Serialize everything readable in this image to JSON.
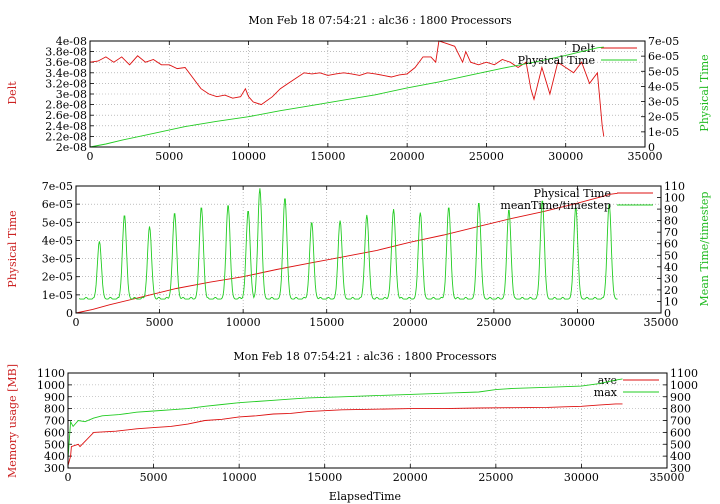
{
  "page": {
    "title": "Mon Feb 18 07:54:21 : alc36 : 1800 Processors"
  },
  "colors": {
    "red": "#dd1111",
    "green": "#22cc22",
    "grid": "#999999",
    "axis": "#000000"
  },
  "chart_data": [
    {
      "type": "line",
      "title": "Mon Feb 18 07:54:21 : alc36 : 1800 Processors",
      "xlabel": "",
      "ylabel": "Delt",
      "y2label": "Physical Time",
      "xlim": [
        0,
        35000
      ],
      "ylim": [
        2e-08,
        4e-08
      ],
      "y2lim": [
        0,
        7e-05
      ],
      "xticks": [
        "0",
        "5000",
        "10000",
        "15000",
        "20000",
        "25000",
        "30000",
        "35000"
      ],
      "yticks": [
        "2e-08",
        "2.2e-08",
        "2.4e-08",
        "2.6e-08",
        "2.8e-08",
        "3e-08",
        "3.2e-08",
        "3.4e-08",
        "3.6e-08",
        "3.8e-08",
        "4e-08"
      ],
      "y2ticks": [
        "0",
        "1e-05",
        "2e-05",
        "3e-05",
        "4e-05",
        "5e-05",
        "6e-05",
        "7e-05"
      ],
      "grid": true,
      "legend": "top-right",
      "series": [
        {
          "name": "Delt",
          "axis": "y",
          "color": "#dd1111",
          "x": [
            0,
            500,
            1000,
            1500,
            2000,
            2500,
            3000,
            3500,
            4000,
            4500,
            5000,
            5500,
            6000,
            6500,
            7000,
            7500,
            8000,
            8500,
            9000,
            9500,
            9800,
            10000,
            10300,
            10800,
            11500,
            12000,
            12500,
            13000,
            13500,
            14000,
            14500,
            15000,
            15500,
            16000,
            16500,
            17000,
            17500,
            18000,
            18500,
            19000,
            19500,
            20000,
            20500,
            21000,
            21500,
            21800,
            22000,
            22500,
            23000,
            23500,
            23700,
            24000,
            24500,
            25000,
            25500,
            26000,
            26500,
            27000,
            27500,
            27800,
            28000,
            28500,
            29000,
            29500,
            30000,
            30500,
            31000,
            31500,
            32000,
            32300,
            32400
          ],
          "values": [
            3.6e-08,
            3.62e-08,
            3.7e-08,
            3.6e-08,
            3.7e-08,
            3.55e-08,
            3.72e-08,
            3.6e-08,
            3.65e-08,
            3.55e-08,
            3.55e-08,
            3.48e-08,
            3.5e-08,
            3.3e-08,
            3.1e-08,
            3e-08,
            2.95e-08,
            2.98e-08,
            2.92e-08,
            2.95e-08,
            3.1e-08,
            2.95e-08,
            2.85e-08,
            2.8e-08,
            2.95e-08,
            3.1e-08,
            3.2e-08,
            3.3e-08,
            3.4e-08,
            3.38e-08,
            3.4e-08,
            3.35e-08,
            3.38e-08,
            3.4e-08,
            3.38e-08,
            3.35e-08,
            3.4e-08,
            3.38e-08,
            3.35e-08,
            3.32e-08,
            3.36e-08,
            3.38e-08,
            3.5e-08,
            3.7e-08,
            3.7e-08,
            3.6e-08,
            4e-08,
            3.95e-08,
            3.9e-08,
            3.6e-08,
            3.8e-08,
            3.6e-08,
            3.55e-08,
            3.6e-08,
            3.55e-08,
            3.65e-08,
            3.6e-08,
            3.5e-08,
            3.6e-08,
            3.1e-08,
            2.9e-08,
            3.5e-08,
            3e-08,
            3.6e-08,
            3.5e-08,
            3.4e-08,
            3.6e-08,
            3.2e-08,
            3.4e-08,
            2.4e-08,
            2.2e-08
          ]
        },
        {
          "name": "Physical Time",
          "axis": "y2",
          "color": "#22cc22",
          "x": [
            0,
            1000,
            2000,
            4000,
            6000,
            8000,
            10000,
            12000,
            14000,
            16000,
            18000,
            20000,
            22000,
            24000,
            26000,
            28000,
            30000,
            31000,
            32000,
            32400
          ],
          "values": [
            0,
            2e-06,
            4.5e-06,
            9e-06,
            1.35e-05,
            1.7e-05,
            2e-05,
            2.4e-05,
            2.75e-05,
            3.1e-05,
            3.45e-05,
            3.9e-05,
            4.3e-05,
            4.75e-05,
            5.2e-05,
            5.6e-05,
            6.05e-05,
            6.3e-05,
            6.55e-05,
            6.6e-05
          ]
        }
      ]
    },
    {
      "type": "line",
      "title": "",
      "xlabel": "",
      "ylabel": "Physical Time",
      "y2label": "Mean Time/timestep",
      "xlim": [
        0,
        35000
      ],
      "ylim": [
        0,
        7e-05
      ],
      "y2lim": [
        0,
        110
      ],
      "xticks": [
        "0",
        "5000",
        "10000",
        "15000",
        "20000",
        "25000",
        "30000",
        "35000"
      ],
      "yticks": [
        "0",
        "1e-05",
        "2e-05",
        "3e-05",
        "4e-05",
        "5e-05",
        "6e-05",
        "7e-05"
      ],
      "y2ticks": [
        "0",
        "10",
        "20",
        "30",
        "40",
        "50",
        "60",
        "70",
        "80",
        "90",
        "100",
        "110"
      ],
      "grid": true,
      "legend": "top-right",
      "series": [
        {
          "name": "Physical Time",
          "axis": "y",
          "color": "#dd1111",
          "x": [
            0,
            1000,
            2000,
            4000,
            6000,
            8000,
            10000,
            12000,
            14000,
            16000,
            18000,
            20000,
            22000,
            24000,
            26000,
            28000,
            30000,
            31000,
            32000,
            32400
          ],
          "values": [
            0,
            2e-06,
            4.5e-06,
            9e-06,
            1.35e-05,
            1.7e-05,
            2e-05,
            2.4e-05,
            2.75e-05,
            3.1e-05,
            3.45e-05,
            3.9e-05,
            4.3e-05,
            4.75e-05,
            5.2e-05,
            5.6e-05,
            6.05e-05,
            6.3e-05,
            6.55e-05,
            6.6e-05
          ]
        },
        {
          "name": "meanTime/timestep",
          "axis": "y2",
          "color": "#22cc22",
          "spike_centers": [
            1400,
            2900,
            4400,
            5900,
            7500,
            9100,
            10300,
            11000,
            12500,
            14100,
            15800,
            17400,
            19000,
            20600,
            22300,
            24100,
            25900,
            27900,
            29900,
            31900
          ],
          "spike_peaks": [
            62,
            85,
            75,
            87,
            92,
            94,
            89,
            108,
            100,
            79,
            80,
            85,
            90,
            87,
            92,
            96,
            90,
            98,
            92,
            95
          ],
          "baseline": 12
        }
      ]
    },
    {
      "type": "line",
      "title": "Mon Feb 18 07:54:21 : alc36 : 1800 Processors",
      "xlabel": "ElapsedTime",
      "ylabel": "Memory usage [MB]",
      "y2label": "",
      "xlim": [
        0,
        35000
      ],
      "ylim": [
        300,
        1100
      ],
      "y2lim": [
        300,
        1100
      ],
      "xticks": [
        "0",
        "5000",
        "10000",
        "15000",
        "20000",
        "25000",
        "30000",
        "35000"
      ],
      "yticks": [
        "300",
        "400",
        "500",
        "600",
        "700",
        "800",
        "900",
        "1000",
        "1100"
      ],
      "y2ticks": [
        "300",
        "400",
        "500",
        "600",
        "700",
        "800",
        "900",
        "1000",
        "1100"
      ],
      "grid": true,
      "legend": "top-right",
      "series": [
        {
          "name": "ave",
          "axis": "y",
          "color": "#dd1111",
          "x": [
            0,
            150,
            200,
            600,
            700,
            1500,
            2800,
            4000,
            5000,
            6000,
            7000,
            8000,
            9000,
            10000,
            11000,
            12000,
            13000,
            14000,
            16000,
            18000,
            20000,
            22000,
            24000,
            26000,
            28000,
            29000,
            30000,
            31000,
            32000,
            32400
          ],
          "values": [
            320,
            400,
            480,
            500,
            480,
            600,
            610,
            630,
            640,
            650,
            670,
            700,
            710,
            730,
            740,
            755,
            760,
            775,
            790,
            795,
            800,
            800,
            805,
            808,
            810,
            815,
            820,
            830,
            840,
            840
          ]
        },
        {
          "name": "max",
          "axis": "y",
          "color": "#22cc22",
          "x": [
            0,
            150,
            300,
            600,
            1000,
            1500,
            2000,
            3000,
            4000,
            5000,
            6000,
            7000,
            8000,
            9000,
            10000,
            11000,
            12000,
            13000,
            14000,
            16000,
            18000,
            20000,
            22000,
            24000,
            25000,
            26000,
            28000,
            30000,
            31000,
            32000,
            32400
          ],
          "values": [
            380,
            690,
            650,
            700,
            690,
            720,
            740,
            750,
            770,
            780,
            790,
            800,
            820,
            835,
            850,
            860,
            870,
            880,
            890,
            900,
            910,
            920,
            930,
            940,
            960,
            970,
            980,
            990,
            1010,
            1040,
            1050
          ]
        }
      ]
    }
  ]
}
